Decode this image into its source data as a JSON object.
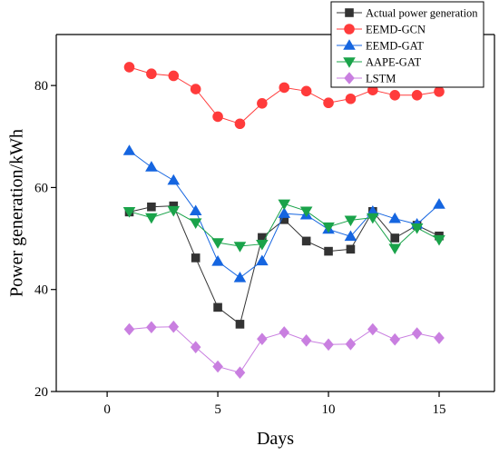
{
  "chart_data": {
    "type": "line",
    "xlabel": "Days",
    "ylabel": "Power generation/kWh",
    "xlim": [
      -2.3,
      17.5
    ],
    "ylim": [
      20,
      90
    ],
    "xticks": [
      0,
      5,
      10,
      15
    ],
    "yticks": [
      20,
      40,
      60,
      80
    ],
    "x_tick_labels": [
      "0",
      "5",
      "10",
      "15"
    ],
    "y_tick_labels": [
      "20",
      "40",
      "60",
      "80"
    ],
    "legend_position": "top-right",
    "grid": false,
    "x": [
      1,
      2,
      3,
      4,
      5,
      6,
      7,
      8,
      9,
      10,
      11,
      12,
      13,
      14,
      15
    ],
    "series": [
      {
        "name": "Actual power generation",
        "color": "#333333",
        "marker": "square",
        "values": [
          55.2,
          56.2,
          56.4,
          46.2,
          36.5,
          33.2,
          50.2,
          53.7,
          49.5,
          47.5,
          47.9,
          55.3,
          50.1,
          52.6,
          50.5
        ]
      },
      {
        "name": "EEMD-GCN",
        "color": "#ff3b3b",
        "marker": "circle",
        "values": [
          83.6,
          82.3,
          81.9,
          79.3,
          73.9,
          72.5,
          76.5,
          79.6,
          78.9,
          76.6,
          77.4,
          79.1,
          78.1,
          78.1,
          78.8
        ]
      },
      {
        "name": "EEMD-GAT",
        "color": "#1565e0",
        "marker": "triangle-up",
        "values": [
          67.2,
          64.0,
          61.4,
          55.4,
          45.5,
          42.3,
          45.6,
          54.9,
          54.6,
          51.8,
          50.4,
          55.3,
          53.9,
          52.8,
          56.7
        ]
      },
      {
        "name": "AAPE-GAT",
        "color": "#1aa34a",
        "marker": "triangle-down",
        "values": [
          55.3,
          54.1,
          55.5,
          53.1,
          49.2,
          48.5,
          48.9,
          56.8,
          55.4,
          52.3,
          53.6,
          54.1,
          48.1,
          52.1,
          49.8
        ]
      },
      {
        "name": "LSTM",
        "color": "#c97fe0",
        "marker": "diamond",
        "values": [
          32.2,
          32.6,
          32.7,
          28.7,
          24.9,
          23.7,
          30.3,
          31.6,
          30.0,
          29.2,
          29.3,
          32.2,
          30.2,
          31.4,
          30.5
        ]
      }
    ]
  }
}
